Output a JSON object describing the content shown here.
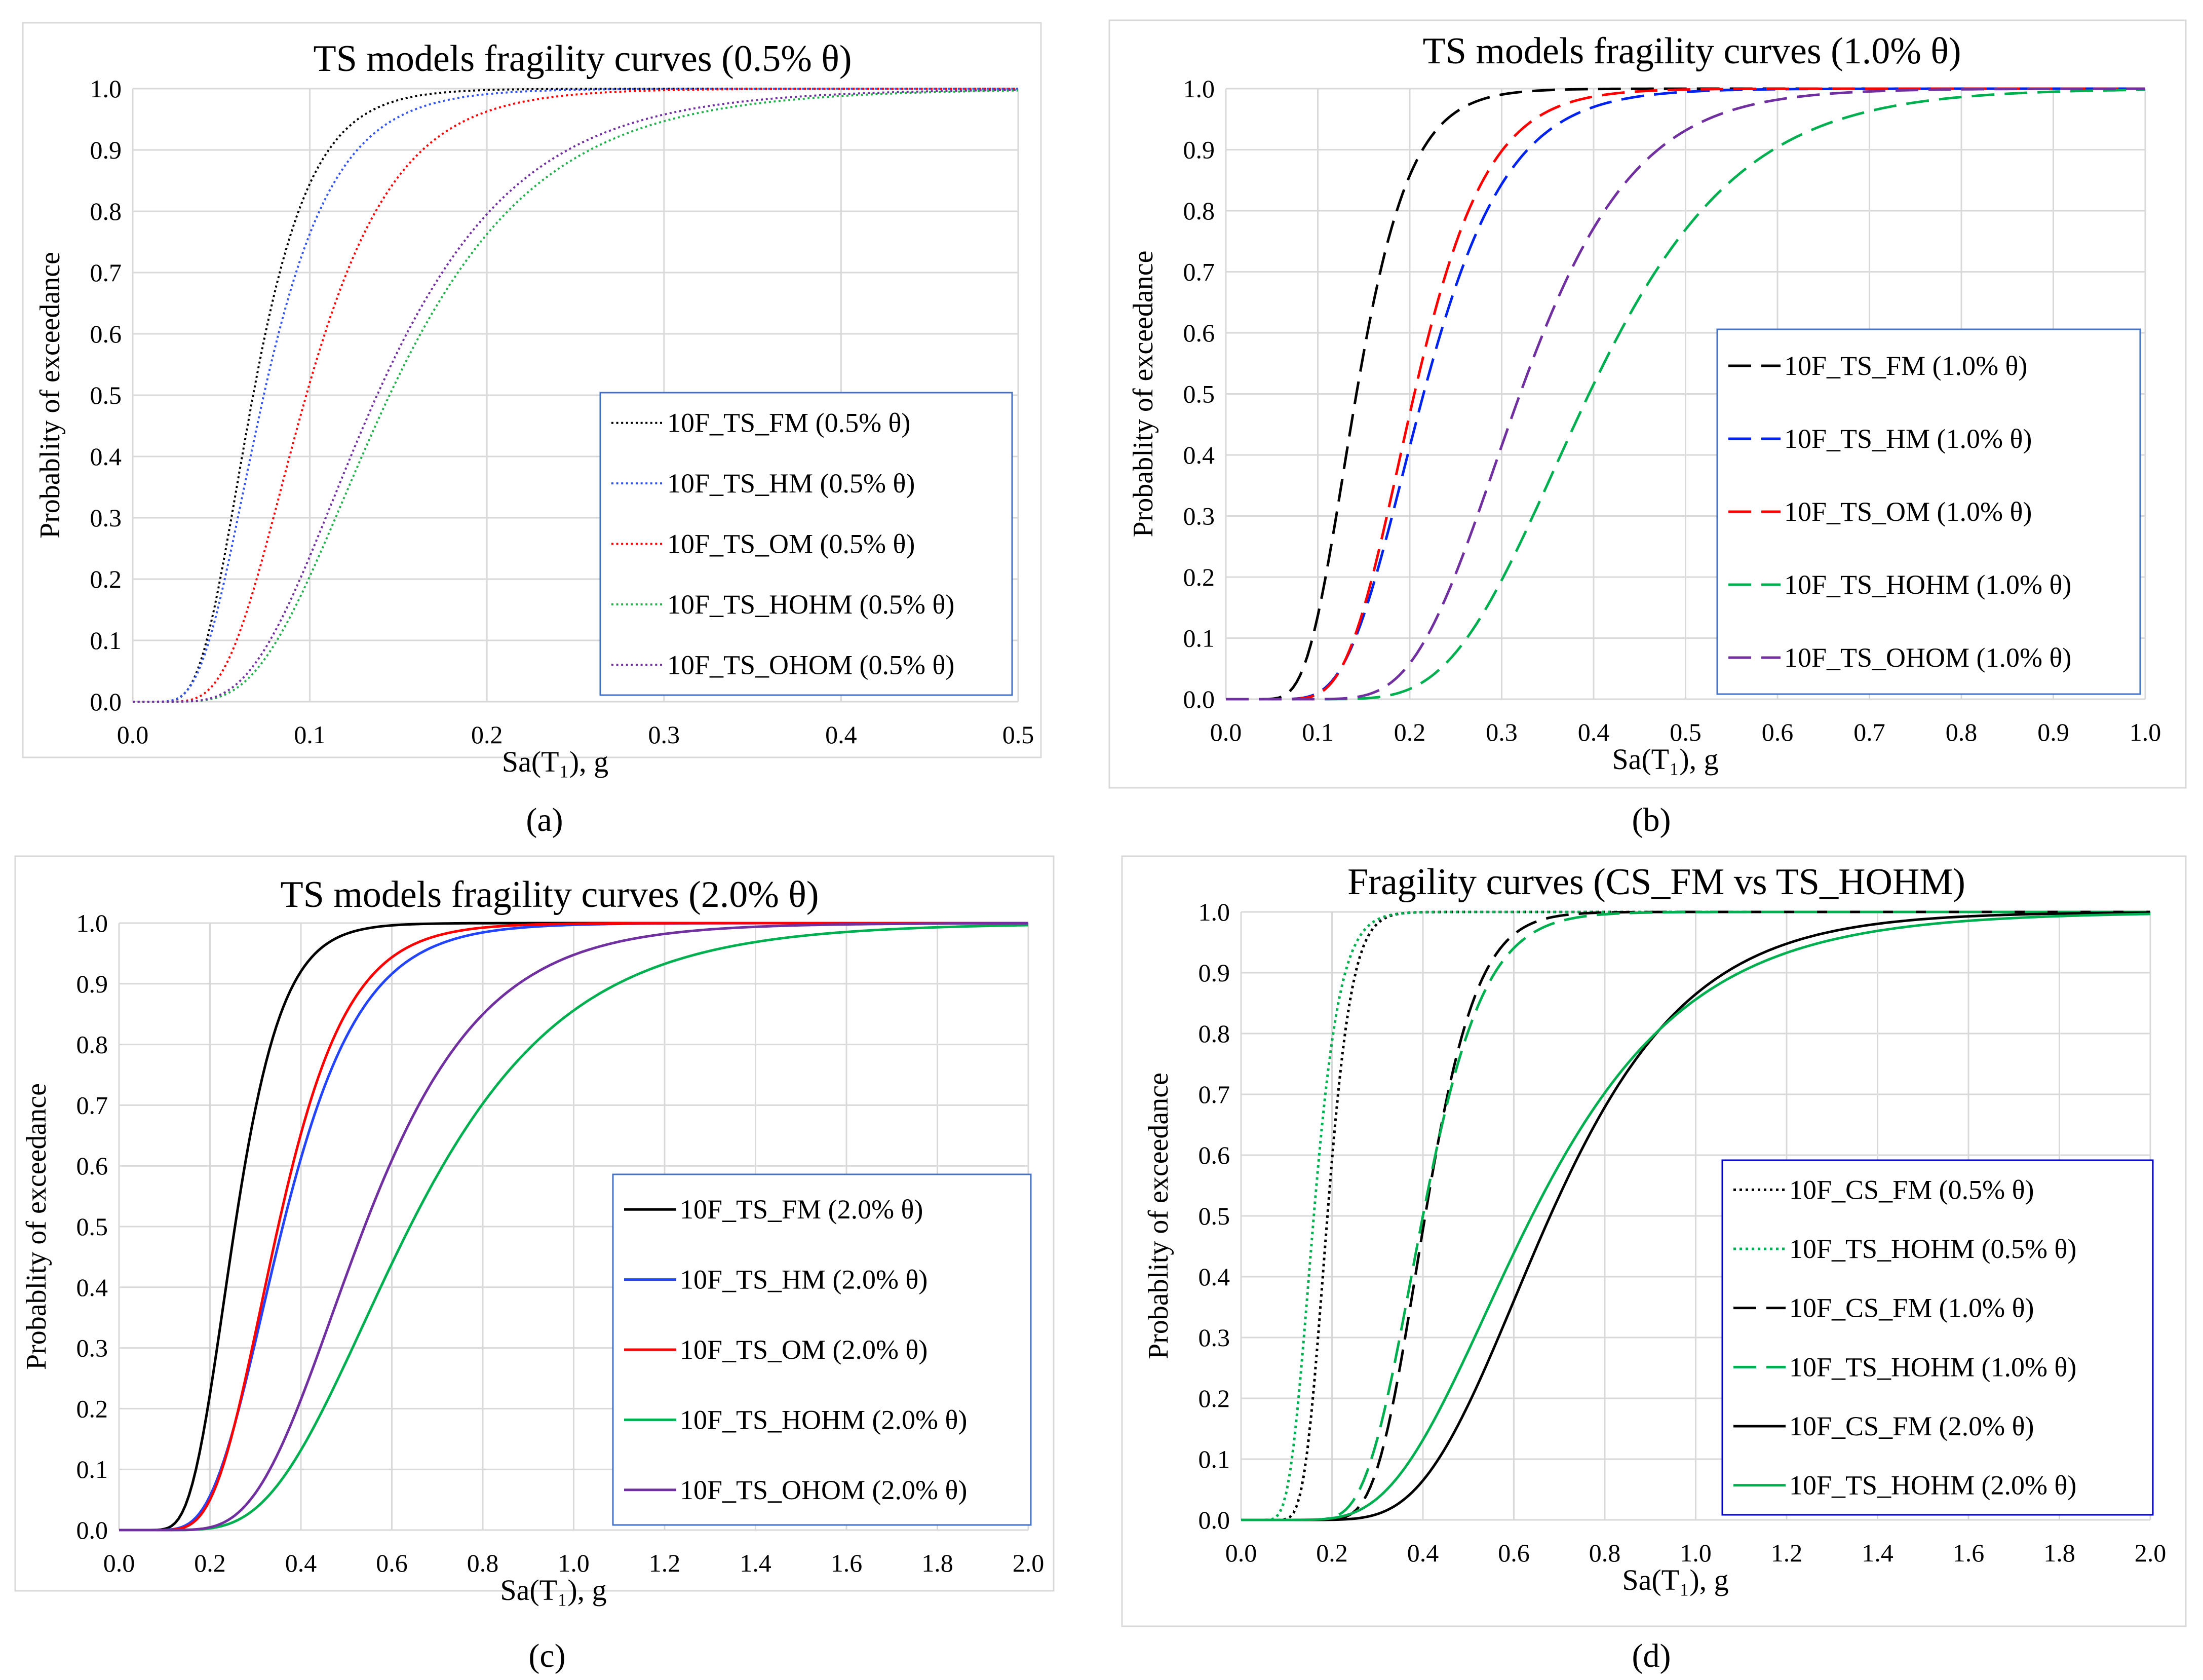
{
  "panels": [
    {
      "id": "a",
      "sublabel": "(a)",
      "title": "TS models fragility curves (0.5% θ)",
      "xlabel": "Sa(T₁), g",
      "ylabel": "Probablity of exceedance",
      "xlim": [
        0,
        0.5
      ],
      "ylim": [
        0,
        1
      ],
      "xticks": [
        "0.0",
        "0.1",
        "0.2",
        "0.3",
        "0.4",
        "0.5"
      ],
      "yticks": [
        "0.0",
        "0.1",
        "0.2",
        "0.3",
        "0.4",
        "0.5",
        "0.6",
        "0.7",
        "0.8",
        "0.9",
        "1.0"
      ],
      "legend_position": "center-right",
      "series": [
        {
          "name": "10F_TS_FM (0.5% θ)",
          "color": "#000000",
          "dash": "dotted",
          "median": 0.068,
          "beta": 0.38
        },
        {
          "name": "10F_TS_HM (0.5% θ)",
          "color": "#3355ee",
          "dash": "dotted",
          "median": 0.074,
          "beta": 0.42
        },
        {
          "name": "10F_TS_OM (0.5% θ)",
          "color": "#ff0000",
          "dash": "dotted",
          "median": 0.098,
          "beta": 0.4
        },
        {
          "name": "10F_TS_HOHM (0.5% θ)",
          "color": "#22b14c",
          "dash": "dotted",
          "median": 0.145,
          "beta": 0.45
        },
        {
          "name": "10F_TS_OHOM (0.5% θ)",
          "color": "#7030a0",
          "dash": "dotted",
          "median": 0.138,
          "beta": 0.45
        }
      ]
    },
    {
      "id": "b",
      "sublabel": "(b)",
      "title": "TS models fragility curves (1.0% θ)",
      "xlabel": "Sa(T₁), g",
      "ylabel": "Probablity of exceedance",
      "xlim": [
        0,
        1
      ],
      "ylim": [
        0,
        1
      ],
      "xticks": [
        "0.0",
        "0.1",
        "0.2",
        "0.3",
        "0.4",
        "0.5",
        "0.6",
        "0.7",
        "0.8",
        "0.9",
        "1.0"
      ],
      "yticks": [
        "0.0",
        "0.1",
        "0.2",
        "0.3",
        "0.4",
        "0.5",
        "0.6",
        "0.7",
        "0.8",
        "0.9",
        "1.0"
      ],
      "legend_position": "center-right",
      "series": [
        {
          "name": "10F_TS_FM (1.0% θ)",
          "color": "#000000",
          "dash": "dashed",
          "median": 0.142,
          "beta": 0.32
        },
        {
          "name": "10F_TS_HM (1.0% θ)",
          "color": "#0022ee",
          "dash": "dashed",
          "median": 0.215,
          "beta": 0.33
        },
        {
          "name": "10F_TS_OM (1.0% θ)",
          "color": "#ff0000",
          "dash": "dashed",
          "median": 0.205,
          "beta": 0.3
        },
        {
          "name": "10F_TS_HOHM (1.0% θ)",
          "color": "#00b050",
          "dash": "dashed",
          "median": 0.395,
          "beta": 0.32
        },
        {
          "name": "10F_TS_OHOM (1.0% θ)",
          "color": "#7030a0",
          "dash": "dashed",
          "median": 0.32,
          "beta": 0.3
        }
      ]
    },
    {
      "id": "c",
      "sublabel": "(c)",
      "title": "TS models fragility curves (2.0% θ)",
      "xlabel": "Sa(T₁), g",
      "ylabel": "Probablity of exceedance",
      "xlim": [
        0,
        2
      ],
      "ylim": [
        0,
        1
      ],
      "xticks": [
        "0.0",
        "0.2",
        "0.4",
        "0.6",
        "0.8",
        "1.0",
        "1.2",
        "1.4",
        "1.6",
        "1.8",
        "2.0"
      ],
      "yticks": [
        "0.0",
        "0.1",
        "0.2",
        "0.3",
        "0.4",
        "0.5",
        "0.6",
        "0.7",
        "0.8",
        "0.9",
        "1.0"
      ],
      "legend_position": "center-right",
      "series": [
        {
          "name": "10F_TS_FM (2.0% θ)",
          "color": "#000000",
          "dash": "solid",
          "median": 0.255,
          "beta": 0.32
        },
        {
          "name": "10F_TS_HM (2.0% θ)",
          "color": "#2244ff",
          "dash": "solid",
          "median": 0.36,
          "beta": 0.37
        },
        {
          "name": "10F_TS_OM (2.0% θ)",
          "color": "#ff0000",
          "dash": "solid",
          "median": 0.35,
          "beta": 0.34
        },
        {
          "name": "10F_TS_HOHM (2.0% θ)",
          "color": "#00b050",
          "dash": "solid",
          "median": 0.64,
          "beta": 0.42
        },
        {
          "name": "10F_TS_OHOM (2.0% θ)",
          "color": "#7030a0",
          "dash": "solid",
          "median": 0.54,
          "beta": 0.38
        }
      ]
    },
    {
      "id": "d",
      "sublabel": "(d)",
      "title": "Fragility curves (CS_FM vs TS_HOHM)",
      "xlabel": "Sa(T₁), g",
      "ylabel": "Probablity of exceedance",
      "xlim": [
        0,
        2
      ],
      "ylim": [
        0,
        1
      ],
      "xticks": [
        "0.0",
        "0.2",
        "0.4",
        "0.6",
        "0.8",
        "1.0",
        "1.2",
        "1.4",
        "1.6",
        "1.8",
        "2.0"
      ],
      "yticks": [
        "0.0",
        "0.1",
        "0.2",
        "0.3",
        "0.4",
        "0.5",
        "0.6",
        "0.7",
        "0.8",
        "0.9",
        "1.0"
      ],
      "legend_position": "center-right",
      "series": [
        {
          "name": "10F_CS_FM (0.5% θ)",
          "color": "#000000",
          "dash": "dotted",
          "median": 0.19,
          "beta": 0.22
        },
        {
          "name": "10F_TS_HOHM (0.5% θ)",
          "color": "#00b050",
          "dash": "dotted",
          "median": 0.16,
          "beta": 0.28
        },
        {
          "name": "10F_CS_FM (1.0% θ)",
          "color": "#000000",
          "dash": "dashed",
          "median": 0.405,
          "beta": 0.22
        },
        {
          "name": "10F_TS_HOHM (1.0% θ)",
          "color": "#00b050",
          "dash": "dashed",
          "median": 0.4,
          "beta": 0.26
        },
        {
          "name": "10F_CS_FM (2.0% θ)",
          "color": "#000000",
          "dash": "solid",
          "median": 0.68,
          "beta": 0.35
        },
        {
          "name": "10F_TS_HOHM (2.0% θ)",
          "color": "#00b050",
          "dash": "solid",
          "median": 0.64,
          "beta": 0.42
        }
      ]
    }
  ]
}
